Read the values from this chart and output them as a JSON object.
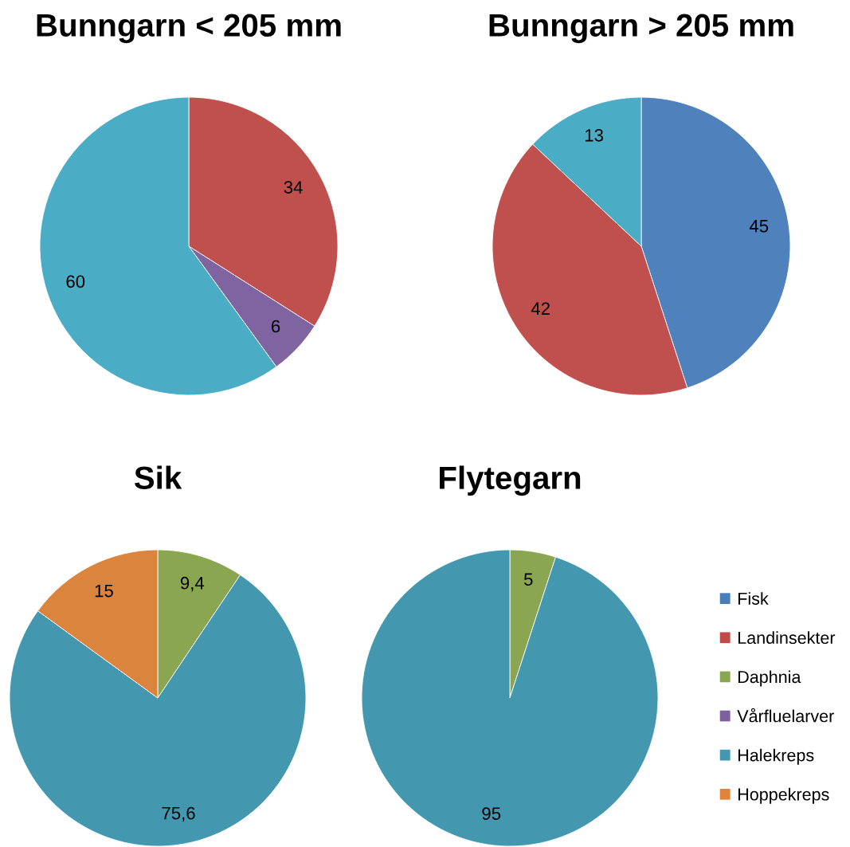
{
  "chart_data": [
    {
      "type": "pie",
      "title": "Bunngarn < 205 mm",
      "categories": [
        null,
        null,
        null
      ],
      "values": [
        34,
        6,
        60
      ],
      "colors": [
        "#c0504d",
        "#8064a2",
        "#4bacc6"
      ],
      "value_labels": [
        "34",
        "6",
        "60"
      ]
    },
    {
      "type": "pie",
      "title": "Bunngarn > 205 mm",
      "categories": [
        null,
        null,
        null
      ],
      "values": [
        45,
        42,
        13
      ],
      "colors": [
        "#4f81bd",
        "#c0504d",
        "#4bacc6"
      ],
      "value_labels": [
        "45",
        "42",
        "13"
      ]
    },
    {
      "type": "pie",
      "title": "Sik",
      "categories": [
        null,
        null,
        null
      ],
      "values": [
        9.4,
        75.6,
        15
      ],
      "colors": [
        "#8aa650",
        "#4398b0",
        "#db843d"
      ],
      "value_labels": [
        "9,4",
        "75,6",
        "15"
      ]
    },
    {
      "type": "pie",
      "title": "Flytegarn",
      "categories": [
        "Fisk",
        "Landinsekter",
        "Daphnia",
        "Vårfluelarver",
        "Halekreps",
        "Hoppekreps"
      ],
      "values": [
        null,
        null,
        5,
        null,
        95,
        null
      ],
      "colors": [
        "#4a7ebb",
        "#be4b48",
        "#8aa650",
        "#7d60a0",
        "#4398b0",
        "#e0843a"
      ],
      "value_labels": [
        null,
        null,
        "5",
        null,
        "95",
        null
      ],
      "legend": "right"
    }
  ]
}
